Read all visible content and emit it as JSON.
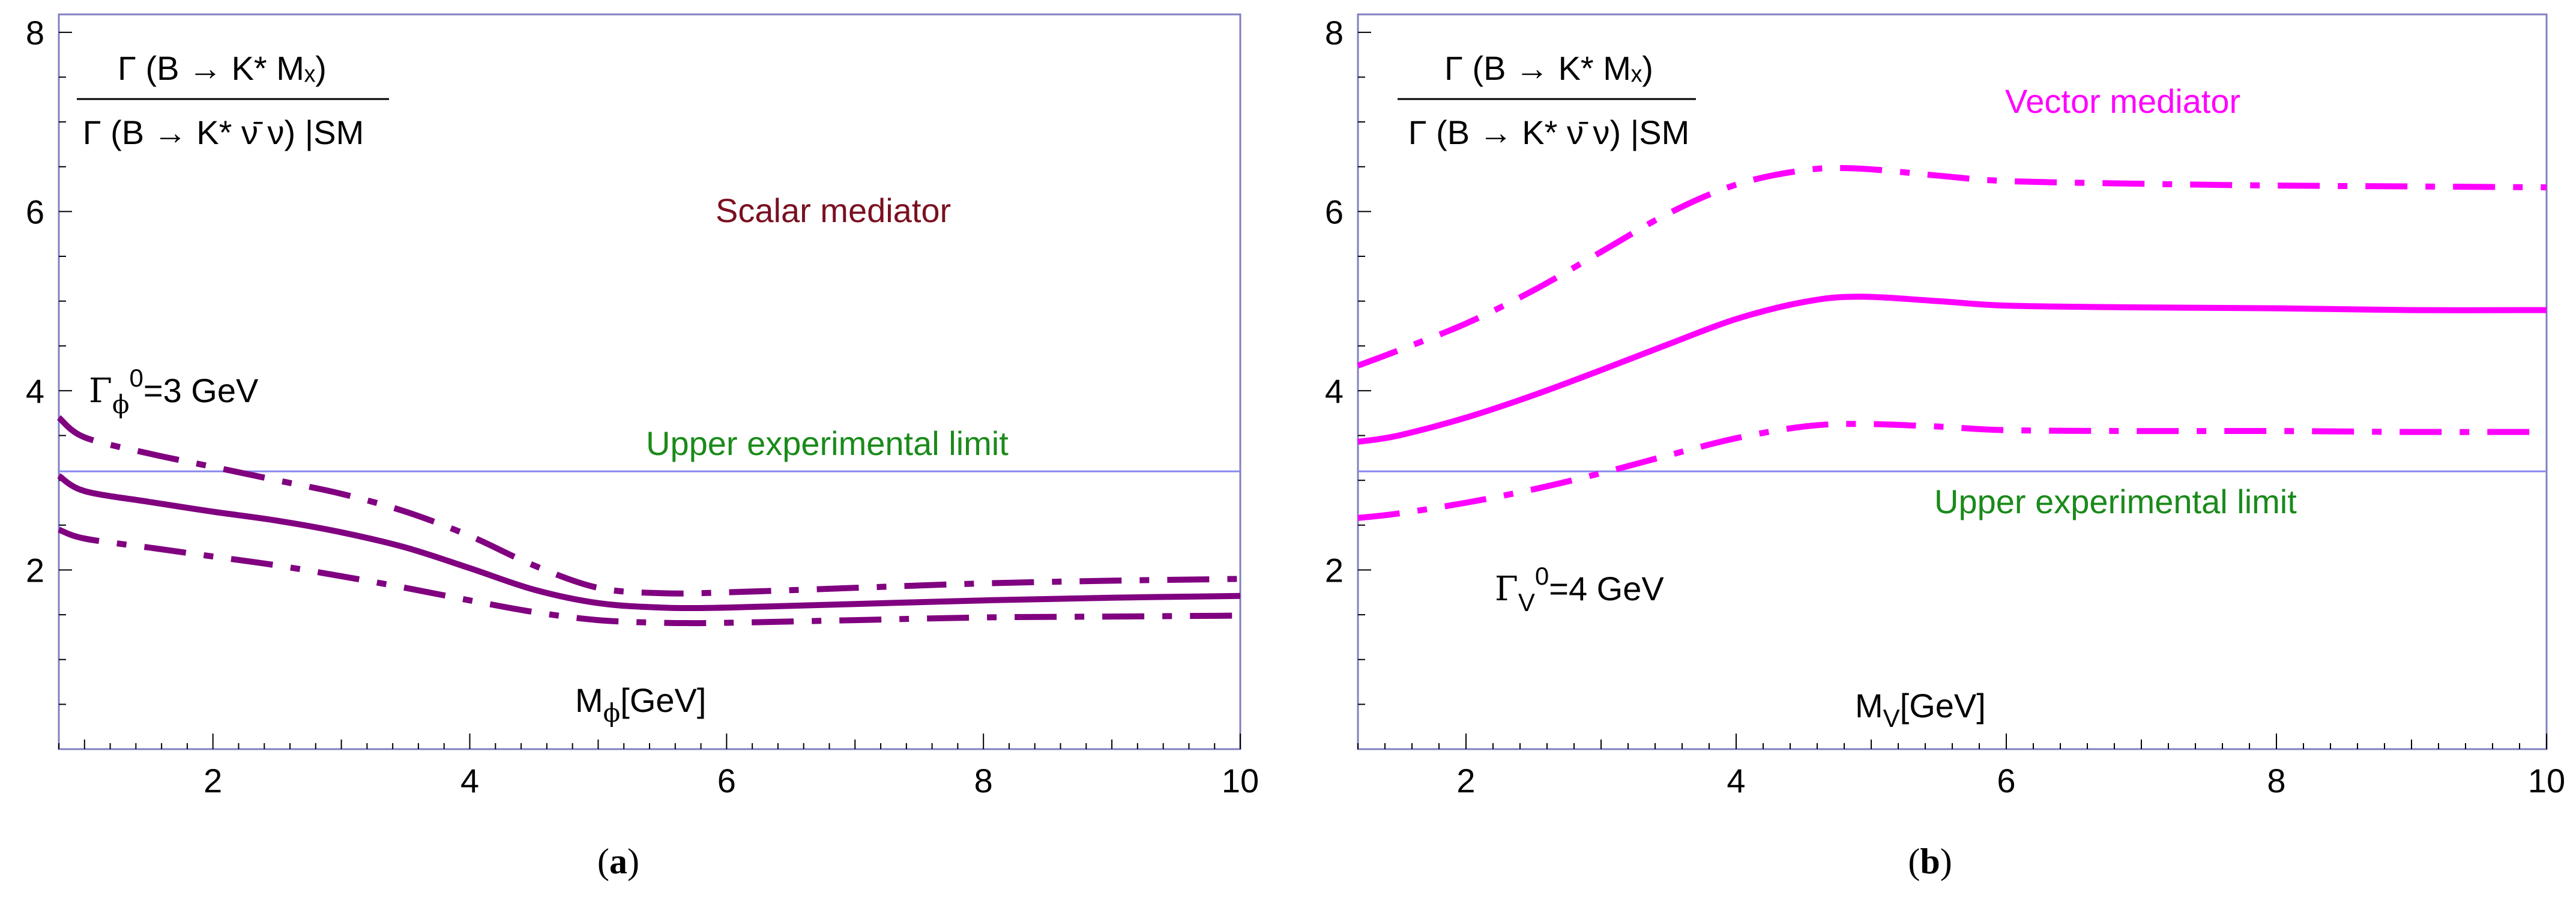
{
  "colors": {
    "scalar": "#800080",
    "scalar_label": "#7a1020",
    "vector": "#ff00ff",
    "limit_line": "#8888ee",
    "limit_text": "#1a8a1a",
    "frame": "#8080c0"
  },
  "chart_data": [
    {
      "type": "line",
      "panel_label": "(a)",
      "panel_letter": "a",
      "ratio_label": {
        "numerator": "Γ (B → K* Mₓ)",
        "denominator": "Γ (B → K* ν̄ ν) |SM"
      },
      "mediator_label": "Scalar mediator",
      "width_label": {
        "gamma": "Γ",
        "sub": "ϕ",
        "sup": "0",
        "value": "=3 GeV"
      },
      "xlabel": {
        "main": "M",
        "sub": "ϕ",
        "unit": "[GeV]"
      },
      "limit_label": "Upper experimental limit",
      "limit_value": 3.1,
      "xlim": [
        0.8,
        10
      ],
      "ylim": [
        0,
        8.2
      ],
      "xticks": [
        2,
        4,
        6,
        8,
        10
      ],
      "yticks": [
        2,
        4,
        6,
        8
      ],
      "series": [
        {
          "name": "central",
          "style": "solid",
          "x": [
            0.8,
            1.0,
            1.5,
            2.0,
            2.5,
            3.0,
            3.5,
            4.0,
            4.5,
            5.0,
            5.5,
            6.0,
            7.0,
            8.0,
            9.0,
            10.0
          ],
          "y": [
            3.05,
            2.88,
            2.76,
            2.65,
            2.55,
            2.42,
            2.25,
            2.02,
            1.78,
            1.63,
            1.58,
            1.58,
            1.62,
            1.66,
            1.69,
            1.71
          ]
        },
        {
          "name": "upper",
          "style": "dashdot",
          "x": [
            0.8,
            1.0,
            1.5,
            2.0,
            2.5,
            3.0,
            3.5,
            4.0,
            4.5,
            5.0,
            5.5,
            6.0,
            7.0,
            8.0,
            9.0,
            10.0
          ],
          "y": [
            3.7,
            3.48,
            3.3,
            3.15,
            3.0,
            2.85,
            2.65,
            2.38,
            2.05,
            1.8,
            1.74,
            1.75,
            1.8,
            1.85,
            1.88,
            1.9
          ]
        },
        {
          "name": "lower",
          "style": "dashdot",
          "x": [
            0.8,
            1.0,
            1.5,
            2.0,
            2.5,
            3.0,
            3.5,
            4.0,
            4.5,
            5.0,
            5.5,
            6.0,
            7.0,
            8.0,
            9.0,
            10.0
          ],
          "y": [
            2.45,
            2.35,
            2.25,
            2.15,
            2.05,
            1.93,
            1.8,
            1.66,
            1.53,
            1.44,
            1.41,
            1.41,
            1.44,
            1.47,
            1.48,
            1.49
          ]
        }
      ]
    },
    {
      "type": "line",
      "panel_label": "(b)",
      "panel_letter": "b",
      "ratio_label": {
        "numerator": "Γ (B → K* Mₓ)",
        "denominator": "Γ (B → K* ν̄ ν) |SM"
      },
      "mediator_label": "Vector mediator",
      "width_label": {
        "gamma": "Γ",
        "sub": "V",
        "sup": "0",
        "value": "=4 GeV"
      },
      "xlabel": {
        "main": "M",
        "sub": "V",
        "unit": "[GeV]"
      },
      "limit_label": "Upper experimental limit",
      "limit_value": 3.1,
      "xlim": [
        1.2,
        10
      ],
      "ylim": [
        0,
        8.2
      ],
      "xticks": [
        2,
        4,
        6,
        8,
        10
      ],
      "yticks": [
        2,
        4,
        6,
        8
      ],
      "series": [
        {
          "name": "central",
          "style": "solid",
          "x": [
            1.2,
            1.5,
            2.0,
            2.5,
            3.0,
            3.5,
            4.0,
            4.5,
            4.9,
            5.5,
            6.0,
            7.0,
            8.0,
            9.0,
            10.0
          ],
          "y": [
            3.43,
            3.5,
            3.7,
            3.95,
            4.23,
            4.52,
            4.8,
            4.99,
            5.05,
            5.0,
            4.95,
            4.93,
            4.92,
            4.9,
            4.9
          ]
        },
        {
          "name": "upper",
          "style": "dashdot",
          "x": [
            1.2,
            1.5,
            2.0,
            2.5,
            3.0,
            3.5,
            4.0,
            4.5,
            4.9,
            5.5,
            6.0,
            7.0,
            8.0,
            9.0,
            10.0
          ],
          "y": [
            4.28,
            4.45,
            4.75,
            5.12,
            5.55,
            5.98,
            6.3,
            6.46,
            6.48,
            6.4,
            6.34,
            6.31,
            6.29,
            6.28,
            6.27
          ]
        },
        {
          "name": "lower",
          "style": "dashdot",
          "x": [
            1.2,
            1.5,
            2.0,
            2.5,
            3.0,
            3.5,
            4.0,
            4.5,
            4.9,
            5.5,
            6.0,
            7.0,
            8.0,
            9.0,
            10.0
          ],
          "y": [
            2.58,
            2.63,
            2.75,
            2.9,
            3.08,
            3.28,
            3.47,
            3.6,
            3.63,
            3.6,
            3.56,
            3.55,
            3.55,
            3.54,
            3.54
          ]
        }
      ]
    }
  ]
}
